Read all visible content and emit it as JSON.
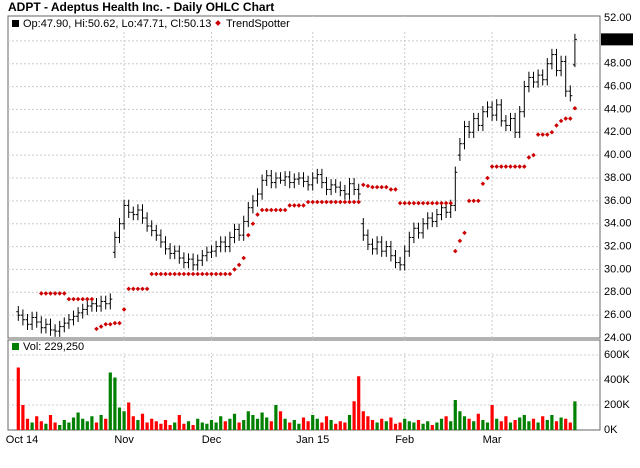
{
  "chart_data": {
    "type": "ohlc",
    "title": "ADPT - Adeptus Health Inc. - Daily OHLC Chart",
    "legend_text": "Op:47.90, Hi:50.62, Lo:47.71, Cl:50.13",
    "grid": true,
    "bar_color": "#000000",
    "xticks": [
      {
        "value": 0,
        "label": "Oct 14"
      },
      {
        "value": 23,
        "label": "Nov"
      },
      {
        "value": 42,
        "label": "Dec"
      },
      {
        "value": 64,
        "label": "Jan 15"
      },
      {
        "value": 84,
        "label": "Feb"
      },
      {
        "value": 103,
        "label": "Mar"
      }
    ],
    "ylim": [
      24,
      52
    ],
    "yticks": [
      {
        "value": 24,
        "label": "24.00"
      },
      {
        "value": 26,
        "label": "26.00"
      },
      {
        "value": 28,
        "label": "28.00"
      },
      {
        "value": 30,
        "label": "30.00"
      },
      {
        "value": 32,
        "label": "32.00"
      },
      {
        "value": 34,
        "label": "34.00"
      },
      {
        "value": 36,
        "label": "36.00"
      },
      {
        "value": 38,
        "label": "38.00"
      },
      {
        "value": 40,
        "label": "40.00"
      },
      {
        "value": 42,
        "label": "42.00"
      },
      {
        "value": 44,
        "label": "44.00"
      },
      {
        "value": 46,
        "label": "46.00"
      },
      {
        "value": 48,
        "label": "48.00"
      },
      {
        "value": 50,
        "label": "50.00"
      },
      {
        "value": 52,
        "label": "52.00"
      }
    ],
    "open": [
      26.3,
      26.0,
      25.6,
      25.2,
      25.8,
      25.4,
      24.9,
      25.2,
      24.7,
      24.6,
      25.0,
      25.3,
      25.6,
      25.9,
      26.2,
      26.5,
      26.8,
      27.0,
      26.8,
      27.2,
      27.0,
      31.5,
      32.8,
      34.0,
      35.6,
      35.0,
      34.8,
      35.2,
      34.5,
      33.8,
      33.4,
      33.0,
      32.4,
      31.8,
      31.4,
      31.6,
      31.0,
      30.6,
      30.9,
      30.4,
      30.8,
      31.2,
      31.5,
      31.6,
      32.0,
      32.4,
      32.0,
      32.8,
      33.5,
      33.0,
      34.2,
      35.4,
      36.0,
      36.6,
      37.8,
      38.2,
      37.6,
      38.0,
      37.8,
      38.1,
      37.6,
      37.9,
      38.0,
      37.7,
      37.4,
      38.0,
      38.3,
      37.6,
      37.0,
      37.4,
      37.2,
      36.9,
      36.6,
      37.5,
      37.0,
      34.0,
      33.0,
      32.2,
      31.8,
      32.4,
      31.6,
      32.0,
      31.2,
      30.6,
      30.4,
      31.6,
      32.8,
      33.6,
      33.2,
      34.0,
      34.5,
      34.2,
      34.8,
      35.4,
      35.0,
      35.6,
      40.0,
      41.0,
      42.5,
      42.0,
      43.2,
      42.6,
      43.8,
      44.2,
      43.5,
      44.4,
      43.0,
      42.6,
      43.2,
      42.0,
      43.8,
      46.0,
      46.8,
      46.4,
      47.0,
      46.6,
      48.0,
      48.8,
      47.4,
      48.2,
      45.6,
      47.9
    ],
    "high": [
      26.8,
      26.5,
      26.1,
      26.3,
      26.3,
      25.9,
      25.7,
      25.7,
      25.2,
      25.5,
      25.8,
      26.1,
      26.4,
      26.7,
      27.0,
      27.3,
      27.5,
      27.5,
      27.7,
      27.7,
      27.9,
      33.3,
      34.5,
      36.1,
      36.1,
      35.5,
      35.7,
      35.7,
      35.0,
      34.3,
      33.9,
      33.5,
      32.9,
      32.3,
      32.1,
      32.1,
      31.5,
      31.4,
      31.4,
      31.3,
      31.7,
      32.0,
      32.1,
      32.5,
      32.9,
      32.9,
      33.3,
      34.0,
      34.0,
      34.7,
      35.9,
      36.5,
      37.1,
      38.3,
      38.7,
      38.7,
      38.5,
      38.5,
      38.6,
      38.6,
      38.4,
      38.5,
      38.5,
      38.2,
      38.5,
      38.8,
      38.8,
      38.1,
      37.9,
      37.9,
      37.7,
      37.4,
      38.0,
      38.0,
      37.5,
      34.5,
      33.5,
      32.7,
      32.9,
      32.9,
      32.5,
      32.5,
      31.7,
      31.1,
      32.1,
      33.3,
      34.1,
      34.1,
      34.5,
      35.0,
      35.0,
      35.3,
      35.9,
      35.9,
      36.1,
      39.0,
      41.5,
      43.0,
      43.0,
      43.7,
      43.7,
      44.3,
      44.7,
      44.7,
      44.9,
      44.9,
      43.5,
      43.7,
      43.7,
      44.3,
      46.5,
      47.3,
      47.3,
      47.5,
      47.5,
      48.5,
      49.3,
      49.3,
      48.7,
      48.7,
      46.1,
      50.62
    ],
    "low": [
      25.5,
      25.1,
      24.7,
      24.7,
      24.9,
      24.4,
      24.4,
      24.2,
      24.1,
      24.1,
      24.5,
      24.8,
      25.1,
      25.4,
      25.7,
      26.0,
      26.3,
      26.3,
      26.3,
      26.5,
      26.5,
      31.0,
      32.3,
      33.5,
      34.5,
      34.3,
      34.3,
      34.0,
      33.3,
      32.9,
      32.5,
      31.9,
      31.3,
      30.9,
      30.9,
      30.5,
      30.1,
      30.1,
      29.9,
      29.9,
      30.3,
      30.7,
      31.0,
      31.1,
      31.5,
      31.5,
      31.5,
      32.3,
      32.5,
      32.5,
      33.7,
      34.9,
      35.5,
      36.1,
      37.3,
      37.1,
      37.1,
      37.5,
      37.3,
      37.1,
      37.1,
      37.4,
      37.2,
      36.9,
      36.9,
      37.5,
      37.1,
      36.5,
      36.5,
      36.7,
      36.4,
      36.1,
      36.1,
      36.5,
      36.1,
      32.5,
      31.7,
      31.3,
      31.3,
      31.1,
      31.1,
      30.7,
      30.1,
      29.9,
      29.9,
      31.1,
      32.3,
      32.7,
      32.7,
      33.5,
      33.7,
      33.7,
      34.3,
      34.5,
      34.5,
      35.1,
      39.5,
      40.5,
      41.5,
      41.5,
      42.1,
      42.1,
      43.3,
      43.0,
      43.0,
      42.5,
      42.1,
      42.1,
      41.5,
      41.5,
      43.3,
      45.5,
      45.9,
      45.9,
      46.1,
      46.1,
      47.5,
      46.9,
      46.9,
      45.1,
      44.7,
      47.71
    ],
    "close": [
      26.0,
      25.6,
      25.2,
      25.8,
      25.4,
      24.9,
      25.2,
      24.7,
      24.6,
      25.0,
      25.3,
      25.6,
      25.9,
      26.2,
      26.5,
      26.8,
      27.0,
      26.8,
      27.2,
      27.0,
      27.4,
      32.8,
      34.0,
      35.6,
      35.0,
      34.8,
      35.2,
      34.5,
      33.8,
      33.4,
      33.0,
      32.4,
      31.8,
      31.4,
      31.6,
      31.0,
      30.6,
      30.9,
      30.4,
      30.8,
      31.2,
      31.5,
      31.6,
      32.0,
      32.4,
      32.0,
      32.8,
      33.5,
      33.0,
      34.2,
      35.4,
      36.0,
      36.6,
      37.8,
      38.2,
      37.6,
      38.0,
      37.8,
      38.1,
      37.6,
      37.9,
      38.0,
      37.7,
      37.4,
      38.0,
      38.3,
      37.6,
      37.0,
      37.4,
      37.2,
      36.9,
      36.6,
      37.5,
      37.0,
      36.6,
      33.0,
      32.2,
      31.8,
      32.4,
      31.6,
      32.0,
      31.2,
      30.6,
      30.4,
      31.6,
      32.8,
      33.6,
      33.2,
      34.0,
      34.5,
      34.2,
      34.8,
      35.4,
      35.0,
      35.6,
      38.5,
      41.0,
      42.5,
      42.0,
      43.2,
      42.6,
      43.8,
      44.2,
      43.5,
      44.4,
      43.0,
      42.6,
      43.2,
      42.0,
      43.8,
      46.0,
      46.8,
      46.4,
      47.0,
      46.6,
      48.0,
      48.8,
      47.4,
      48.2,
      45.6,
      45.2,
      50.13
    ],
    "trendspotter": {
      "name": "TrendSpotter",
      "color": "#cc0000",
      "values": [
        null,
        null,
        null,
        null,
        null,
        27.9,
        27.9,
        27.9,
        27.9,
        27.9,
        27.9,
        27.4,
        27.4,
        27.4,
        27.4,
        27.4,
        27.4,
        24.8,
        25.0,
        25.2,
        25.2,
        25.3,
        25.3,
        26.5,
        28.3,
        28.3,
        28.3,
        28.3,
        28.3,
        29.6,
        29.6,
        29.6,
        29.6,
        29.6,
        29.6,
        29.6,
        29.6,
        29.6,
        29.6,
        29.6,
        29.6,
        29.6,
        29.6,
        29.6,
        29.6,
        29.6,
        29.6,
        30.0,
        30.4,
        31.0,
        33.0,
        34.0,
        34.8,
        35.2,
        35.2,
        35.2,
        35.2,
        35.2,
        35.2,
        35.6,
        35.6,
        35.6,
        35.6,
        35.9,
        35.9,
        35.9,
        35.9,
        35.9,
        35.9,
        35.9,
        35.9,
        35.9,
        35.9,
        35.9,
        35.9,
        37.4,
        37.3,
        37.2,
        37.2,
        37.2,
        37.2,
        37.0,
        37.0,
        35.8,
        35.8,
        35.8,
        35.8,
        35.8,
        35.8,
        35.8,
        35.8,
        35.8,
        35.8,
        35.8,
        35.8,
        31.6,
        32.5,
        33.2,
        36.0,
        36.0,
        36.0,
        37.5,
        38.0,
        39.0,
        39.0,
        39.0,
        39.0,
        39.0,
        39.0,
        39.0,
        39.0,
        39.8,
        40.0,
        41.8,
        41.8,
        41.8,
        42.0,
        42.6,
        43.0,
        43.2,
        43.2,
        44.1
      ]
    },
    "volume": {
      "legend_text": "Vol: 229,250",
      "up_color": "#008000",
      "down_color": "#ff0000",
      "ylim": [
        0,
        720000
      ],
      "yticks": [
        {
          "value": 0,
          "label": "0K"
        },
        {
          "value": 200000,
          "label": "200K"
        },
        {
          "value": 400000,
          "label": "400K"
        },
        {
          "value": 600000,
          "label": "600K"
        }
      ],
      "values": [
        500000,
        200000,
        90000,
        60000,
        110000,
        70000,
        50000,
        120000,
        60000,
        40000,
        80000,
        60000,
        100000,
        140000,
        90000,
        70000,
        110000,
        60000,
        120000,
        90000,
        460000,
        420000,
        180000,
        150000,
        220000,
        110000,
        80000,
        130000,
        60000,
        90000,
        70000,
        50000,
        80000,
        40000,
        60000,
        120000,
        50000,
        70000,
        40000,
        90000,
        60000,
        50000,
        80000,
        60000,
        110000,
        70000,
        90000,
        130000,
        60000,
        80000,
        150000,
        120000,
        90000,
        140000,
        100000,
        70000,
        200000,
        150000,
        90000,
        60000,
        80000,
        50000,
        100000,
        70000,
        120000,
        90000,
        60000,
        110000,
        80000,
        50000,
        70000,
        60000,
        120000,
        230000,
        430000,
        150000,
        110000,
        80000,
        60000,
        90000,
        70000,
        100000,
        50000,
        60000,
        90000,
        70000,
        60000,
        80000,
        50000,
        70000,
        40000,
        60000,
        90000,
        110000,
        70000,
        240000,
        150000,
        110000,
        90000,
        70000,
        130000,
        80000,
        60000,
        200000,
        90000,
        70000,
        110000,
        60000,
        80000,
        100000,
        120000,
        70000,
        90000,
        60000,
        110000,
        80000,
        120000,
        70000,
        100000,
        90000,
        60000,
        229250
      ]
    }
  }
}
